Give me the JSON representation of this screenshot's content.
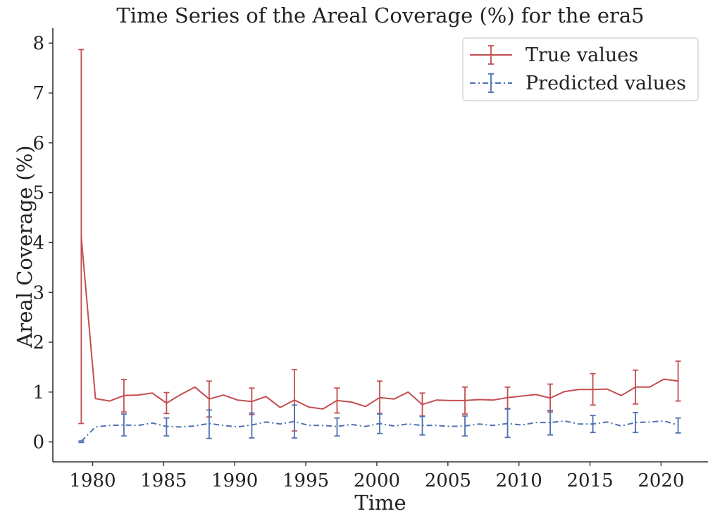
{
  "chart_data": {
    "type": "line",
    "title": "Time Series of the Areal Coverage (%) for the era5",
    "xlabel": "Time",
    "ylabel": "Areal Coverage (%)",
    "xlim": [
      1977.2,
      2023.3
    ],
    "ylim": [
      -0.4,
      8.3
    ],
    "xticks": [
      1980,
      1985,
      1990,
      1995,
      2000,
      2005,
      2010,
      2015,
      2020
    ],
    "yticks": [
      0,
      1,
      2,
      3,
      4,
      5,
      6,
      7,
      8
    ],
    "legend_position": "upper-right",
    "grid": false,
    "x": [
      1979.2,
      1980.2,
      1981.2,
      1982.2,
      1983.2,
      1984.2,
      1985.2,
      1986.2,
      1987.2,
      1988.2,
      1989.2,
      1990.2,
      1991.2,
      1992.2,
      1993.2,
      1994.2,
      1995.2,
      1996.2,
      1997.2,
      1998.2,
      1999.2,
      2000.2,
      2001.2,
      2002.2,
      2003.2,
      2004.2,
      2005.2,
      2006.2,
      2007.2,
      2008.2,
      2009.2,
      2010.2,
      2011.2,
      2012.2,
      2013.2,
      2014.2,
      2015.2,
      2016.2,
      2017.2,
      2018.2,
      2019.2,
      2020.2,
      2021.2
    ],
    "series": [
      {
        "name": "True values",
        "color": "#c44e52",
        "linestyle": "solid",
        "values": [
          4.12,
          0.87,
          0.82,
          0.93,
          0.94,
          0.98,
          0.78,
          0.95,
          1.1,
          0.86,
          0.94,
          0.84,
          0.81,
          0.91,
          0.69,
          0.84,
          0.7,
          0.66,
          0.83,
          0.8,
          0.71,
          0.89,
          0.86,
          1.0,
          0.75,
          0.84,
          0.83,
          0.83,
          0.85,
          0.84,
          0.89,
          0.92,
          0.95,
          0.88,
          1.01,
          1.05,
          1.05,
          1.06,
          0.93,
          1.1,
          1.1,
          1.26,
          1.22
        ],
        "errorbars": [
          {
            "x": 1979.2,
            "low": 0.37,
            "high": 7.87
          },
          {
            "x": 1982.2,
            "low": 0.6,
            "high": 1.25
          },
          {
            "x": 1985.2,
            "low": 0.57,
            "high": 0.99
          },
          {
            "x": 1988.2,
            "low": 0.5,
            "high": 1.22
          },
          {
            "x": 1991.2,
            "low": 0.55,
            "high": 1.08
          },
          {
            "x": 1994.2,
            "low": 0.22,
            "high": 1.45
          },
          {
            "x": 1997.2,
            "low": 0.58,
            "high": 1.08
          },
          {
            "x": 2000.2,
            "low": 0.57,
            "high": 1.22
          },
          {
            "x": 2003.2,
            "low": 0.52,
            "high": 0.98
          },
          {
            "x": 2006.2,
            "low": 0.56,
            "high": 1.1
          },
          {
            "x": 2009.2,
            "low": 0.67,
            "high": 1.1
          },
          {
            "x": 2012.2,
            "low": 0.6,
            "high": 1.16
          },
          {
            "x": 2015.2,
            "low": 0.74,
            "high": 1.37
          },
          {
            "x": 2018.2,
            "low": 0.76,
            "high": 1.44
          },
          {
            "x": 2021.2,
            "low": 0.82,
            "high": 1.62
          }
        ]
      },
      {
        "name": "Predicted values",
        "color": "#4c72b0",
        "linestyle": "dashdot",
        "values": [
          0.01,
          0.3,
          0.33,
          0.34,
          0.33,
          0.38,
          0.31,
          0.3,
          0.32,
          0.37,
          0.33,
          0.3,
          0.34,
          0.4,
          0.36,
          0.41,
          0.33,
          0.33,
          0.31,
          0.35,
          0.31,
          0.37,
          0.32,
          0.36,
          0.33,
          0.33,
          0.31,
          0.32,
          0.36,
          0.33,
          0.37,
          0.34,
          0.39,
          0.39,
          0.42,
          0.36,
          0.36,
          0.4,
          0.32,
          0.39,
          0.4,
          0.42,
          0.34
        ],
        "errorbars": [
          {
            "x": 1979.2,
            "low": -0.01,
            "high": 0.02
          },
          {
            "x": 1982.2,
            "low": 0.12,
            "high": 0.56
          },
          {
            "x": 1985.2,
            "low": 0.12,
            "high": 0.48
          },
          {
            "x": 1988.2,
            "low": 0.07,
            "high": 0.64
          },
          {
            "x": 1991.2,
            "low": 0.08,
            "high": 0.58
          },
          {
            "x": 1994.2,
            "low": 0.08,
            "high": 0.74
          },
          {
            "x": 1997.2,
            "low": 0.12,
            "high": 0.48
          },
          {
            "x": 2000.2,
            "low": 0.17,
            "high": 0.56
          },
          {
            "x": 2003.2,
            "low": 0.14,
            "high": 0.51
          },
          {
            "x": 2006.2,
            "low": 0.12,
            "high": 0.52
          },
          {
            "x": 2009.2,
            "low": 0.09,
            "high": 0.66
          },
          {
            "x": 2012.2,
            "low": 0.14,
            "high": 0.63
          },
          {
            "x": 2015.2,
            "low": 0.19,
            "high": 0.53
          },
          {
            "x": 2018.2,
            "low": 0.19,
            "high": 0.59
          },
          {
            "x": 2021.2,
            "low": 0.18,
            "high": 0.48
          }
        ]
      }
    ]
  }
}
